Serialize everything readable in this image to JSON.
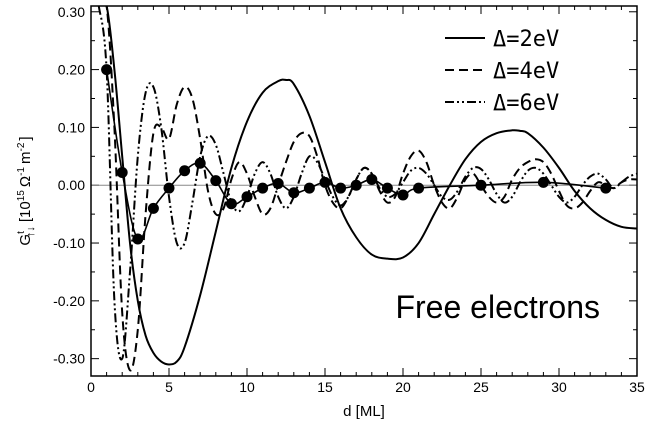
{
  "chart_data": {
    "type": "line",
    "xlabel": "d [ML]",
    "ylabel": "G↑↓t [10^15 Ω^-1 m^-2 ]",
    "ylabel_parts": {
      "main": "G",
      "superscript": "t",
      "subscript": "↑↓",
      "units": "[10",
      "units_exp": "15",
      "units_tail": "Ω",
      "units_exp2": "-1",
      "units_tail2": "m",
      "units_exp3": "-2",
      "units_close": "]"
    },
    "xlim": [
      0,
      35
    ],
    "ylim": [
      -0.33,
      0.31
    ],
    "x_ticks": [
      0,
      5,
      10,
      15,
      20,
      25,
      30,
      35
    ],
    "x_tick_labels": [
      "0",
      "5",
      "10",
      "15",
      "20",
      "25",
      "30",
      "35"
    ],
    "y_ticks": [
      -0.3,
      -0.2,
      -0.1,
      0.0,
      0.1,
      0.2,
      0.3
    ],
    "y_tick_labels": [
      "-0.30",
      "-0.20",
      "-0.10",
      "0.00",
      "0.10",
      "0.20",
      "0.30"
    ],
    "annotation": "Free electrons",
    "legend_position": "top-right",
    "series": [
      {
        "name": "Δ=2eV",
        "style": "solid",
        "x": [
          0.5,
          1,
          1.5,
          2,
          2.5,
          3,
          3.5,
          4,
          4.5,
          5,
          5.5,
          6,
          7,
          8,
          9,
          10,
          11,
          12,
          12.5,
          13,
          14,
          15,
          16,
          17,
          18,
          19,
          20,
          21,
          22,
          23,
          24,
          25,
          26,
          27,
          27.5,
          28,
          29,
          30,
          31,
          32,
          33,
          34,
          35
        ],
        "y": [
          0.31,
          0.31,
          0.2,
          0.05,
          -0.1,
          -0.2,
          -0.26,
          -0.29,
          -0.305,
          -0.31,
          -0.305,
          -0.28,
          -0.19,
          -0.08,
          0.03,
          0.11,
          0.16,
          0.18,
          0.182,
          0.175,
          0.12,
          0.04,
          -0.04,
          -0.09,
          -0.12,
          -0.127,
          -0.125,
          -0.1,
          -0.05,
          0.0,
          0.045,
          0.075,
          0.09,
          0.095,
          0.094,
          0.09,
          0.065,
          0.03,
          -0.01,
          -0.04,
          -0.06,
          -0.072,
          -0.075
        ]
      },
      {
        "name": "Δ=4eV",
        "style": "dashed",
        "x": [
          0.5,
          1,
          1.5,
          2,
          2.5,
          3,
          3.5,
          4,
          4.5,
          5,
          5.5,
          6,
          6.5,
          7,
          7.5,
          8,
          8.5,
          9,
          9.5,
          10,
          10.5,
          11,
          11.5,
          12,
          12.5,
          13,
          13.5,
          14,
          14.5,
          15,
          15.5,
          16,
          16.5,
          17,
          17.5,
          18,
          18.5,
          19,
          19.5,
          20,
          20.5,
          21,
          21.5,
          22,
          22.5,
          23,
          23.5,
          24,
          24.5,
          25,
          25.5,
          26,
          26.5,
          27,
          27.5,
          28,
          28.5,
          29,
          29.5,
          30,
          30.5,
          31,
          31.5,
          32,
          32.5,
          33,
          33.5,
          34,
          34.5,
          35
        ],
        "y": [
          0.31,
          0.31,
          0.1,
          -0.22,
          -0.32,
          -0.25,
          -0.05,
          0.09,
          0.1,
          0.08,
          0.14,
          0.17,
          0.15,
          0.08,
          -0.01,
          -0.05,
          -0.04,
          0.01,
          0.04,
          0.02,
          -0.02,
          -0.05,
          -0.04,
          0.0,
          0.04,
          0.075,
          0.09,
          0.085,
          0.05,
          0.0,
          -0.03,
          -0.04,
          -0.02,
          0.01,
          0.03,
          0.02,
          -0.01,
          -0.03,
          -0.02,
          0.02,
          0.05,
          0.06,
          0.04,
          0.0,
          -0.03,
          -0.04,
          -0.02,
          0.01,
          0.02,
          0.0,
          -0.02,
          -0.03,
          -0.02,
          0.01,
          0.03,
          0.04,
          0.045,
          0.04,
          0.02,
          -0.01,
          -0.035,
          -0.04,
          -0.03,
          -0.01,
          0.005,
          0.0,
          -0.005,
          0.005,
          0.01,
          0.01
        ]
      },
      {
        "name": "Δ=6eV",
        "style": "dash-dot-dot",
        "x": [
          0.5,
          1,
          1.5,
          2,
          2.5,
          3,
          3.5,
          4,
          4.5,
          5,
          5.5,
          6,
          6.5,
          7,
          7.5,
          8,
          8.5,
          9,
          9.5,
          10,
          10.5,
          11,
          11.5,
          12,
          12.5,
          13,
          13.5,
          14,
          14.5,
          15,
          15.5,
          16,
          16.5,
          17,
          17.5,
          18,
          18.5,
          19,
          19.5,
          20,
          20.5,
          21,
          21.5,
          22,
          22.5,
          23,
          23.5,
          24,
          24.5,
          25,
          25.5,
          26,
          26.5,
          27,
          27.5,
          28,
          28.5,
          29,
          29.5,
          30,
          30.5,
          31,
          31.5,
          32,
          32.5,
          33,
          33.5,
          34,
          34.5,
          35
        ],
        "y": [
          0.31,
          0.2,
          -0.2,
          -0.3,
          -0.15,
          0.05,
          0.16,
          0.17,
          0.1,
          -0.02,
          -0.1,
          -0.1,
          -0.03,
          0.05,
          0.085,
          0.07,
          0.02,
          -0.03,
          -0.045,
          -0.02,
          0.02,
          0.04,
          0.02,
          -0.02,
          -0.04,
          -0.02,
          0.02,
          0.05,
          0.04,
          0.01,
          -0.02,
          -0.035,
          -0.02,
          0.01,
          0.03,
          0.02,
          -0.005,
          -0.02,
          -0.015,
          0.005,
          0.025,
          0.03,
          0.02,
          0.0,
          -0.02,
          -0.025,
          -0.01,
          0.015,
          0.03,
          0.028,
          0.01,
          -0.015,
          -0.03,
          -0.02,
          0.005,
          0.025,
          0.03,
          0.02,
          0.0,
          -0.02,
          -0.03,
          -0.02,
          0.0,
          0.015,
          0.02,
          0.01,
          -0.005,
          0.005,
          0.015,
          0.02
        ]
      },
      {
        "name": "",
        "style": "solid-markers",
        "x": [
          1,
          2,
          3,
          4,
          5,
          6,
          7,
          8,
          9,
          10,
          11,
          12,
          13,
          14,
          15,
          16,
          17,
          18,
          19,
          20,
          21,
          25,
          29,
          33
        ],
        "y": [
          0.2,
          0.022,
          -0.093,
          -0.04,
          -0.005,
          0.025,
          0.038,
          0.008,
          -0.032,
          -0.02,
          -0.005,
          0.003,
          -0.013,
          -0.005,
          0.005,
          -0.005,
          0.0,
          0.01,
          -0.005,
          -0.017,
          -0.005,
          0.0,
          0.005,
          -0.005
        ]
      }
    ]
  }
}
